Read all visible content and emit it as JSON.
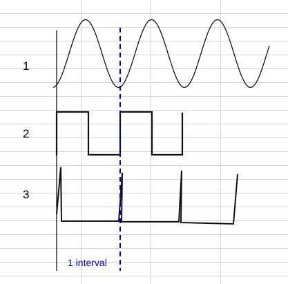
{
  "rows": [
    {
      "label": "1"
    },
    {
      "label": "2"
    },
    {
      "label": "3"
    }
  ],
  "annotation": {
    "text": "1 interval",
    "color": "#0000cc"
  },
  "colors": {
    "signal": "#111111",
    "axis": "#000000",
    "grid": "#d4d4d4",
    "marker": "#0000cc"
  },
  "waveforms": [
    {
      "row": "1",
      "shape": "sine"
    },
    {
      "row": "2",
      "shape": "square"
    },
    {
      "row": "3",
      "shape": "sawtooth"
    }
  ]
}
